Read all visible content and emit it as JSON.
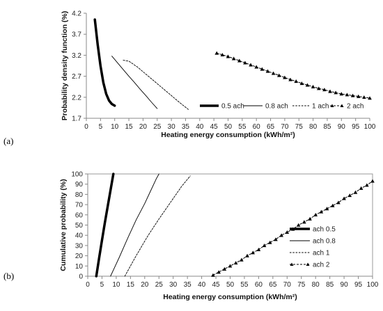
{
  "chart_data": [
    {
      "panel_label": "(a)",
      "type": "line",
      "xlabel": "Heating energy consumption  (kWh/m²)",
      "ylabel": "Probability density function (%)",
      "xlim": [
        0,
        100
      ],
      "ylim": [
        1.7,
        4.2
      ],
      "x_ticks": [
        "0",
        "5",
        "10",
        "15",
        "20",
        "25",
        "30",
        "35",
        "40",
        "45",
        "50",
        "55",
        "60",
        "65",
        "70",
        "75",
        "80",
        "85",
        "90",
        "95",
        "100"
      ],
      "y_ticks": [
        "1.7",
        "2.2",
        "2.7",
        "3.2",
        "3.7",
        "4.2"
      ],
      "legend_position": "bottom-right",
      "series": [
        {
          "name": "0.5 ach",
          "style": "thick",
          "x": [
            3,
            4,
            5,
            6,
            7,
            8,
            9,
            10
          ],
          "y": [
            4.05,
            3.45,
            2.95,
            2.55,
            2.28,
            2.12,
            2.04,
            2.0
          ]
        },
        {
          "name": "0.8 ach",
          "style": "thin",
          "x": [
            9,
            11,
            13,
            15,
            17,
            19,
            21,
            23,
            25
          ],
          "y": [
            3.18,
            3.02,
            2.86,
            2.7,
            2.55,
            2.39,
            2.24,
            2.08,
            1.93
          ]
        },
        {
          "name": "1 ach",
          "style": "dashed",
          "x": [
            13,
            15,
            18,
            21,
            24,
            27,
            30,
            33,
            36
          ],
          "y": [
            3.08,
            3.06,
            2.92,
            2.75,
            2.58,
            2.41,
            2.24,
            2.07,
            1.91
          ]
        },
        {
          "name": "2 ach",
          "style": "triangles",
          "x": [
            46,
            48,
            50,
            52,
            54,
            56,
            58,
            60,
            62,
            64,
            66,
            68,
            70,
            72,
            74,
            76,
            78,
            80,
            82,
            84,
            86,
            88,
            90,
            92,
            94,
            96,
            98,
            100
          ],
          "y": [
            3.25,
            3.21,
            3.17,
            3.12,
            3.07,
            3.02,
            2.97,
            2.92,
            2.87,
            2.82,
            2.77,
            2.72,
            2.67,
            2.62,
            2.58,
            2.53,
            2.49,
            2.45,
            2.41,
            2.38,
            2.34,
            2.31,
            2.28,
            2.26,
            2.24,
            2.22,
            2.2,
            2.18
          ]
        }
      ]
    },
    {
      "panel_label": "(b)",
      "type": "line",
      "xlabel": "Heating energy consumption  (kWh/m²)",
      "ylabel": "Cumulative probability  (%)",
      "xlim": [
        0,
        100
      ],
      "ylim": [
        0,
        100
      ],
      "x_ticks": [
        "0",
        "5",
        "10",
        "15",
        "20",
        "25",
        "30",
        "35",
        "40",
        "45",
        "50",
        "55",
        "60",
        "65",
        "70",
        "75",
        "80",
        "85",
        "90",
        "95",
        "100"
      ],
      "y_ticks": [
        "0",
        "10",
        "20",
        "30",
        "40",
        "50",
        "60",
        "70",
        "80",
        "90",
        "100"
      ],
      "legend_position": "right",
      "series": [
        {
          "name": "ach 0.5",
          "style": "thick",
          "x": [
            3,
            4,
            5,
            6,
            7,
            8,
            9
          ],
          "y": [
            0,
            18,
            35,
            52,
            68,
            84,
            100
          ]
        },
        {
          "name": "ach 0.8",
          "style": "thin",
          "x": [
            8,
            11,
            14,
            17,
            20,
            22,
            24,
            25
          ],
          "y": [
            0,
            18,
            37,
            55,
            71,
            83,
            95,
            100
          ]
        },
        {
          "name": "ach 1",
          "style": "dashed",
          "x": [
            13,
            17,
            21,
            25,
            29,
            33,
            36
          ],
          "y": [
            0,
            20,
            39,
            56,
            72,
            88,
            98
          ]
        },
        {
          "name": "ach 2",
          "style": "triangles",
          "x": [
            44,
            46,
            48,
            50,
            52,
            54,
            56,
            58,
            60,
            62,
            64,
            66,
            68,
            70,
            72,
            74,
            76,
            78,
            80,
            82,
            84,
            86,
            88,
            90,
            92,
            94,
            96,
            98,
            100
          ],
          "y": [
            1,
            4,
            7,
            10,
            13,
            16,
            20,
            23,
            26,
            30,
            33,
            36,
            40,
            43,
            46,
            50,
            53,
            56,
            60,
            63,
            66,
            69,
            72,
            76,
            79,
            82,
            86,
            89,
            93
          ]
        }
      ]
    }
  ]
}
